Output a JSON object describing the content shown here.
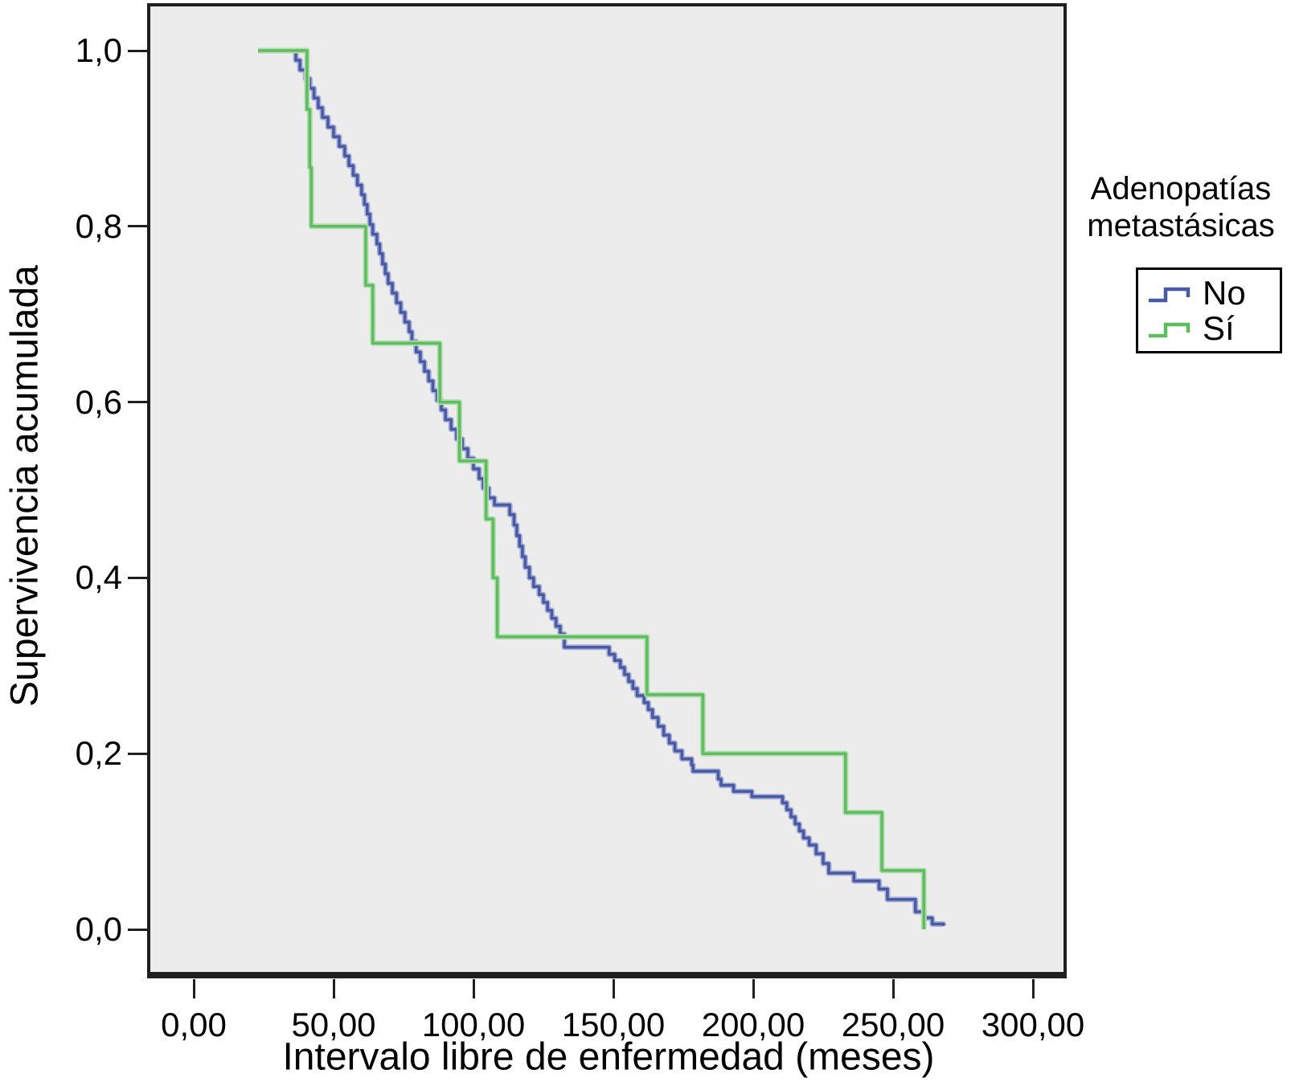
{
  "chart_data": {
    "type": "line",
    "subtype": "kaplan-meier-step",
    "title": "",
    "xlabel": "Intervalo libre de enfermedad (meses)",
    "ylabel": "Supervivencia acumulada",
    "xlim": [
      -16.5,
      312
    ],
    "ylim": [
      -0.053,
      1.054
    ],
    "grid": "off",
    "plot_background": "#ECECEC",
    "frame_color": "#1f1f1f",
    "x_ticks": {
      "values": [
        0,
        50,
        100,
        150,
        200,
        250,
        300
      ],
      "labels": [
        "0,00",
        "50,00",
        "100,00",
        "150,00",
        "200,00",
        "250,00",
        "300,00"
      ]
    },
    "y_ticks": {
      "values": [
        0.0,
        0.2,
        0.4,
        0.6,
        0.8,
        1.0
      ],
      "labels": [
        "0,0",
        "0,2",
        "0,4",
        "0,6",
        "0,8",
        "1,0"
      ]
    },
    "legend": {
      "title": "Adenopatías metastásicas",
      "position": "right",
      "items": [
        {
          "name": "No",
          "color": "#4A59A4",
          "halo": "#A6AFD6"
        },
        {
          "name": "Sí",
          "color": "#5FBC5F",
          "halo": "#B2DDB0"
        }
      ]
    },
    "series": [
      {
        "name": "No",
        "color": "#4A59A4",
        "halo": "#A6AFD6",
        "points": [
          [
            23,
            1.0
          ],
          [
            36.5,
            0.989
          ],
          [
            38,
            0.978
          ],
          [
            40,
            0.968
          ],
          [
            41.5,
            0.957
          ],
          [
            43,
            0.946
          ],
          [
            44.5,
            0.935
          ],
          [
            46,
            0.924
          ],
          [
            48,
            0.913
          ],
          [
            50,
            0.902
          ],
          [
            52,
            0.891
          ],
          [
            54,
            0.88
          ],
          [
            55.5,
            0.869
          ],
          [
            57,
            0.858
          ],
          [
            58.5,
            0.847
          ],
          [
            60,
            0.836
          ],
          [
            61,
            0.825
          ],
          [
            62,
            0.814
          ],
          [
            63,
            0.802
          ],
          [
            64,
            0.791
          ],
          [
            65.5,
            0.78
          ],
          [
            66.5,
            0.769
          ],
          [
            67.5,
            0.757
          ],
          [
            68.5,
            0.746
          ],
          [
            69.5,
            0.735
          ],
          [
            71,
            0.724
          ],
          [
            72.5,
            0.713
          ],
          [
            74,
            0.702
          ],
          [
            75.5,
            0.691
          ],
          [
            77,
            0.68
          ],
          [
            78,
            0.669
          ],
          [
            79.5,
            0.657
          ],
          [
            81,
            0.646
          ],
          [
            82.5,
            0.635
          ],
          [
            84,
            0.624
          ],
          [
            85.5,
            0.613
          ],
          [
            87,
            0.602
          ],
          [
            88.5,
            0.591
          ],
          [
            90,
            0.58
          ],
          [
            92,
            0.569
          ],
          [
            94,
            0.558
          ],
          [
            96,
            0.547
          ],
          [
            98,
            0.536
          ],
          [
            100,
            0.524
          ],
          [
            102,
            0.513
          ],
          [
            103.5,
            0.502
          ],
          [
            105.5,
            0.491
          ],
          [
            107.5,
            0.483
          ],
          [
            113,
            0.472
          ],
          [
            114.5,
            0.46
          ],
          [
            115.5,
            0.448
          ],
          [
            116.5,
            0.436
          ],
          [
            117.5,
            0.424
          ],
          [
            118.5,
            0.412
          ],
          [
            120,
            0.4
          ],
          [
            121.5,
            0.39
          ],
          [
            123.5,
            0.381
          ],
          [
            125,
            0.372
          ],
          [
            126.5,
            0.363
          ],
          [
            128,
            0.354
          ],
          [
            129.5,
            0.345
          ],
          [
            131,
            0.336
          ],
          [
            132.5,
            0.321
          ],
          [
            148.5,
            0.313
          ],
          [
            150.5,
            0.306
          ],
          [
            152.5,
            0.298
          ],
          [
            154,
            0.29
          ],
          [
            155.5,
            0.282
          ],
          [
            157,
            0.274
          ],
          [
            158.5,
            0.266
          ],
          [
            161,
            0.258
          ],
          [
            162.5,
            0.25
          ],
          [
            164,
            0.241
          ],
          [
            166,
            0.231
          ],
          [
            168,
            0.221
          ],
          [
            170,
            0.212
          ],
          [
            172,
            0.203
          ],
          [
            174.5,
            0.194
          ],
          [
            178,
            0.187
          ],
          [
            178.5,
            0.18
          ],
          [
            187.5,
            0.171
          ],
          [
            188.5,
            0.164
          ],
          [
            193,
            0.157
          ],
          [
            199.5,
            0.151
          ],
          [
            210.5,
            0.144
          ],
          [
            212,
            0.136
          ],
          [
            213.5,
            0.128
          ],
          [
            215,
            0.12
          ],
          [
            216.5,
            0.112
          ],
          [
            218,
            0.104
          ],
          [
            220,
            0.096
          ],
          [
            222.5,
            0.086
          ],
          [
            225,
            0.075
          ],
          [
            227,
            0.064
          ],
          [
            236,
            0.055
          ],
          [
            245,
            0.046
          ],
          [
            248,
            0.034
          ],
          [
            258,
            0.02
          ],
          [
            261,
            0.013
          ],
          [
            264,
            0.006
          ],
          [
            268,
            0.004
          ]
        ]
      },
      {
        "name": "Sí",
        "color": "#5FBC5F",
        "halo": "#B2DDB0",
        "points": [
          [
            23,
            1.0
          ],
          [
            40.5,
            0.933
          ],
          [
            41.5,
            0.867
          ],
          [
            42,
            0.8
          ],
          [
            61.5,
            0.733
          ],
          [
            64,
            0.667
          ],
          [
            88,
            0.6
          ],
          [
            95,
            0.533
          ],
          [
            104.5,
            0.467
          ],
          [
            107,
            0.4
          ],
          [
            108.5,
            0.333
          ],
          [
            162,
            0.267
          ],
          [
            182,
            0.2
          ],
          [
            233,
            0.133
          ],
          [
            246,
            0.067
          ],
          [
            261,
            0.0
          ]
        ]
      }
    ]
  }
}
